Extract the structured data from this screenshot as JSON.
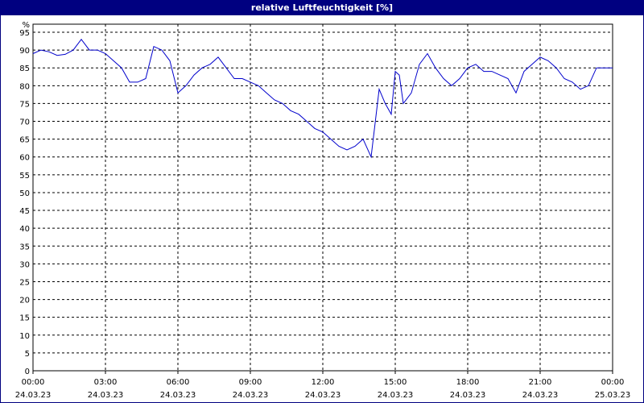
{
  "window": {
    "title": "relative Luftfeuchtigkeit [%]"
  },
  "chart_data": {
    "type": "line",
    "title": "relative Luftfeuchtigkeit [%]",
    "ylabel": "%",
    "ylim": [
      0,
      95
    ],
    "y_ticks": [
      0,
      5,
      10,
      15,
      20,
      25,
      30,
      35,
      40,
      45,
      50,
      55,
      60,
      65,
      70,
      75,
      80,
      85,
      90,
      95
    ],
    "xlim": [
      "24.03.23 00:00",
      "25.03.23 00:00"
    ],
    "x_ticks": [
      {
        "time": "00:00",
        "date": "24.03.23"
      },
      {
        "time": "03:00",
        "date": "24.03.23"
      },
      {
        "time": "06:00",
        "date": "24.03.23"
      },
      {
        "time": "09:00",
        "date": "24.03.23"
      },
      {
        "time": "12:00",
        "date": "24.03.23"
      },
      {
        "time": "15:00",
        "date": "24.03.23"
      },
      {
        "time": "18:00",
        "date": "24.03.23"
      },
      {
        "time": "21:00",
        "date": "24.03.23"
      },
      {
        "time": "00:00",
        "date": "25.03.23"
      }
    ],
    "grid": true,
    "line_color": "#0000cc",
    "series": [
      {
        "x": [
          "00:00",
          "00:20",
          "00:40",
          "01:00",
          "01:20",
          "01:40",
          "02:00",
          "02:20",
          "02:40",
          "03:00",
          "03:20",
          "03:40",
          "04:00",
          "04:20",
          "04:40",
          "05:00",
          "05:20",
          "05:40",
          "06:00",
          "06:20",
          "06:40",
          "07:00",
          "07:20",
          "07:40",
          "08:00",
          "08:20",
          "08:40",
          "09:00",
          "09:20",
          "09:40",
          "10:00",
          "10:20",
          "10:40",
          "11:00",
          "11:20",
          "11:40",
          "12:00",
          "12:20",
          "12:40",
          "13:00",
          "13:20",
          "13:40",
          "14:00",
          "14:20",
          "14:35",
          "14:50",
          "15:00",
          "15:10",
          "15:20",
          "15:40",
          "16:00",
          "16:20",
          "16:40",
          "17:00",
          "17:20",
          "17:40",
          "18:00",
          "18:20",
          "18:40",
          "19:00",
          "19:20",
          "19:40",
          "20:00",
          "20:20",
          "20:40",
          "21:00",
          "21:20",
          "21:40",
          "22:00",
          "22:20",
          "22:40",
          "23:00",
          "23:20",
          "23:40",
          "00:00"
        ],
        "values": [
          89,
          90,
          89.5,
          88.5,
          88.8,
          90,
          93,
          90,
          90,
          89,
          87,
          85,
          81,
          81,
          82,
          91,
          90,
          87,
          78,
          80,
          83,
          85,
          86,
          88,
          85,
          82,
          82,
          81,
          80,
          78,
          76,
          75,
          73,
          72,
          70,
          68,
          67,
          65,
          63,
          62,
          63,
          65,
          60,
          79,
          75,
          72,
          84,
          83,
          75,
          78,
          86,
          89,
          85,
          82,
          80,
          82,
          85,
          86,
          84,
          84,
          83,
          82,
          78,
          84,
          86,
          88,
          87,
          85,
          82,
          81,
          79,
          80,
          85,
          85,
          85
        ]
      }
    ]
  }
}
